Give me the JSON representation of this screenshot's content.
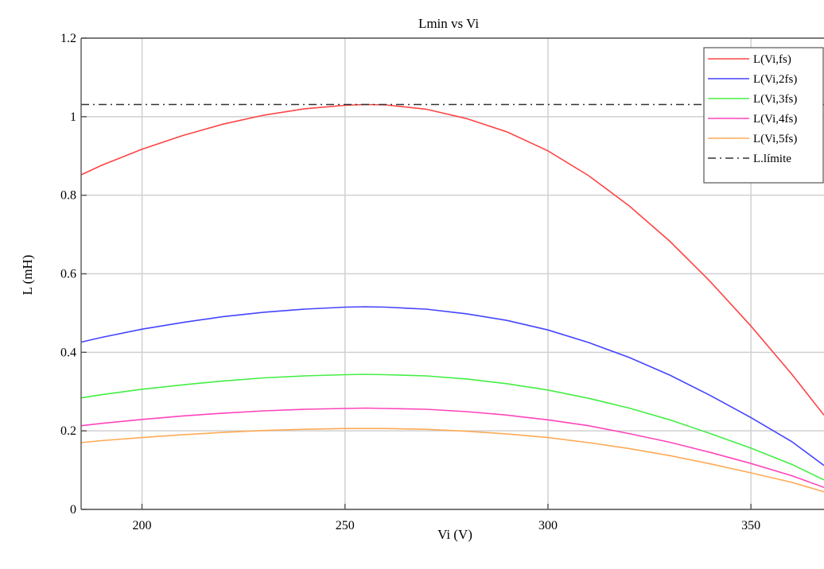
{
  "chart_data": {
    "type": "line",
    "title": "Lmin vs Vi",
    "xlabel": "Vi (V)",
    "ylabel": "L (mH)",
    "xlim": [
      185,
      368
    ],
    "ylim": [
      0,
      1.2
    ],
    "xticks": [
      200,
      250,
      300,
      350
    ],
    "yticks": [
      0,
      0.2,
      0.4,
      0.6,
      0.8,
      1,
      1.2
    ],
    "xtick_labels": [
      "200",
      "250",
      "300",
      "350"
    ],
    "ytick_labels": [
      "0",
      "0.2",
      "0.4",
      "0.6",
      "0.8",
      "1",
      "1.2"
    ],
    "grid": true,
    "legend_position": "top-right",
    "x": [
      185,
      190,
      200,
      210,
      220,
      230,
      240,
      250,
      255,
      260,
      270,
      280,
      290,
      300,
      310,
      320,
      330,
      340,
      350,
      360,
      368
    ],
    "series": [
      {
        "name": "L(Vi,fs)",
        "color": "#ff4444",
        "style": "solid",
        "values": [
          0.852,
          0.876,
          0.917,
          0.952,
          0.981,
          1.004,
          1.02,
          1.029,
          1.031,
          1.03,
          1.019,
          0.995,
          0.961,
          0.913,
          0.85,
          0.773,
          0.683,
          0.58,
          0.467,
          0.345,
          0.24
        ]
      },
      {
        "name": "L(Vi,2fs)",
        "color": "#4444ff",
        "style": "solid",
        "values": [
          0.426,
          0.438,
          0.459,
          0.476,
          0.491,
          0.502,
          0.51,
          0.515,
          0.516,
          0.515,
          0.51,
          0.498,
          0.481,
          0.457,
          0.425,
          0.387,
          0.342,
          0.29,
          0.234,
          0.173,
          0.112
        ]
      },
      {
        "name": "L(Vi,3fs)",
        "color": "#44ee44",
        "style": "solid",
        "values": [
          0.284,
          0.292,
          0.306,
          0.317,
          0.327,
          0.335,
          0.34,
          0.343,
          0.344,
          0.343,
          0.34,
          0.332,
          0.32,
          0.304,
          0.283,
          0.258,
          0.228,
          0.193,
          0.156,
          0.115,
          0.075
        ]
      },
      {
        "name": "L(Vi,4fs)",
        "color": "#ff44bb",
        "style": "solid",
        "values": [
          0.213,
          0.219,
          0.229,
          0.238,
          0.245,
          0.251,
          0.255,
          0.257,
          0.258,
          0.257,
          0.255,
          0.249,
          0.24,
          0.228,
          0.213,
          0.193,
          0.171,
          0.145,
          0.117,
          0.086,
          0.056
        ]
      },
      {
        "name": "L(Vi,5fs)",
        "color": "#ffaa55",
        "style": "solid",
        "values": [
          0.17,
          0.175,
          0.183,
          0.19,
          0.196,
          0.201,
          0.204,
          0.206,
          0.206,
          0.206,
          0.204,
          0.199,
          0.192,
          0.183,
          0.17,
          0.155,
          0.137,
          0.116,
          0.093,
          0.069,
          0.045
        ]
      },
      {
        "name": "L.límite",
        "color": "#333333",
        "style": "dashdot",
        "values": [
          1.031,
          1.031,
          1.031,
          1.031,
          1.031,
          1.031,
          1.031,
          1.031,
          1.031,
          1.031,
          1.031,
          1.031,
          1.031,
          1.031,
          1.031,
          1.031,
          1.031,
          1.031,
          1.031,
          1.031,
          1.031
        ]
      }
    ]
  }
}
